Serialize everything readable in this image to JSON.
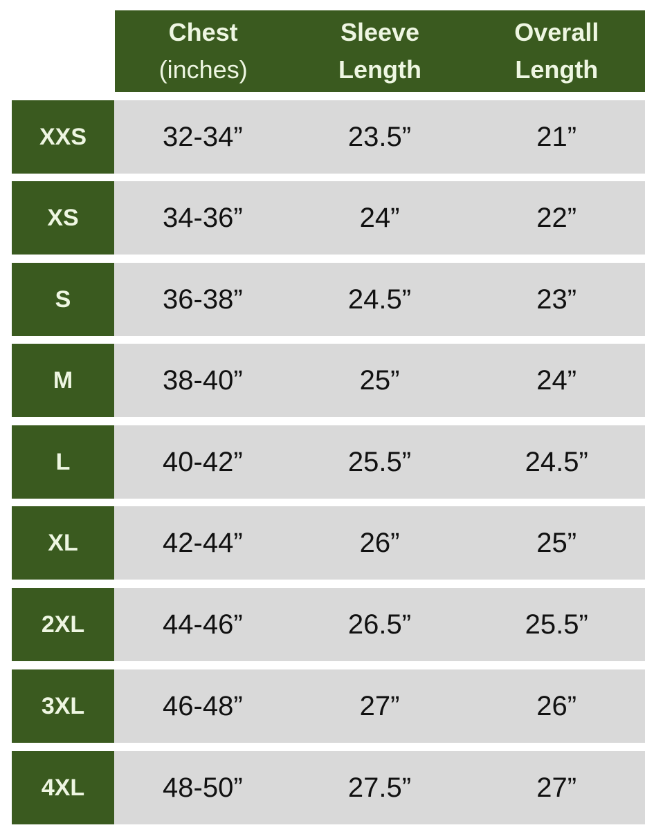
{
  "colors": {
    "header_bg": "#3a5a1f",
    "cell_bg": "#d9d9d9",
    "header_text": "#eef6e2"
  },
  "headers": [
    {
      "line1": "Chest",
      "line2": "(inches)"
    },
    {
      "line1": "Sleeve",
      "line2": "Length"
    },
    {
      "line1": "Overall",
      "line2": "Length"
    }
  ],
  "rows": [
    {
      "size": "XXS",
      "chest": "32-34”",
      "sleeve": "23.5”",
      "overall": "21”"
    },
    {
      "size": "XS",
      "chest": "34-36”",
      "sleeve": "24”",
      "overall": "22”"
    },
    {
      "size": "S",
      "chest": "36-38”",
      "sleeve": "24.5”",
      "overall": "23”"
    },
    {
      "size": "M",
      "chest": "38-40”",
      "sleeve": "25”",
      "overall": "24”"
    },
    {
      "size": "L",
      "chest": "40-42”",
      "sleeve": "25.5”",
      "overall": "24.5”"
    },
    {
      "size": "XL",
      "chest": "42-44”",
      "sleeve": "26”",
      "overall": "25”"
    },
    {
      "size": "2XL",
      "chest": "44-46”",
      "sleeve": "26.5”",
      "overall": "25.5”"
    },
    {
      "size": "3XL",
      "chest": "46-48”",
      "sleeve": "27”",
      "overall": "26”"
    },
    {
      "size": "4XL",
      "chest": "48-50”",
      "sleeve": "27.5”",
      "overall": "27”"
    }
  ]
}
